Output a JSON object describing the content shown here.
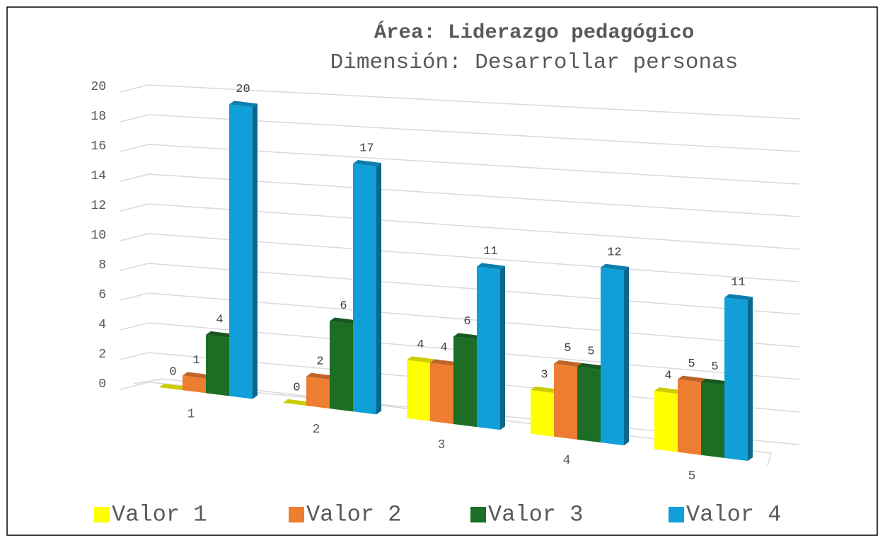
{
  "chart_data": {
    "type": "bar3d",
    "title": "Área: Liderazgo pedagógico",
    "subtitle": "Dimensión: Desarrollar personas",
    "categories": [
      "1",
      "2",
      "3",
      "4",
      "5"
    ],
    "series": [
      {
        "name": "Valor 1",
        "color": "#ffff00",
        "values": [
          0,
          0,
          4,
          3,
          4
        ]
      },
      {
        "name": "Valor 2",
        "color": "#ed7d31",
        "values": [
          1,
          2,
          4,
          5,
          5
        ]
      },
      {
        "name": "Valor 3",
        "color": "#1c6e24",
        "values": [
          4,
          6,
          6,
          5,
          5
        ]
      },
      {
        "name": "Valor 4",
        "color": "#109fd8",
        "values": [
          20,
          17,
          11,
          12,
          11
        ]
      }
    ],
    "ylim": [
      0,
      20
    ],
    "yticks": [
      0,
      2,
      4,
      6,
      8,
      10,
      12,
      14,
      16,
      18,
      20
    ],
    "grid": true,
    "legend": "bottom"
  }
}
